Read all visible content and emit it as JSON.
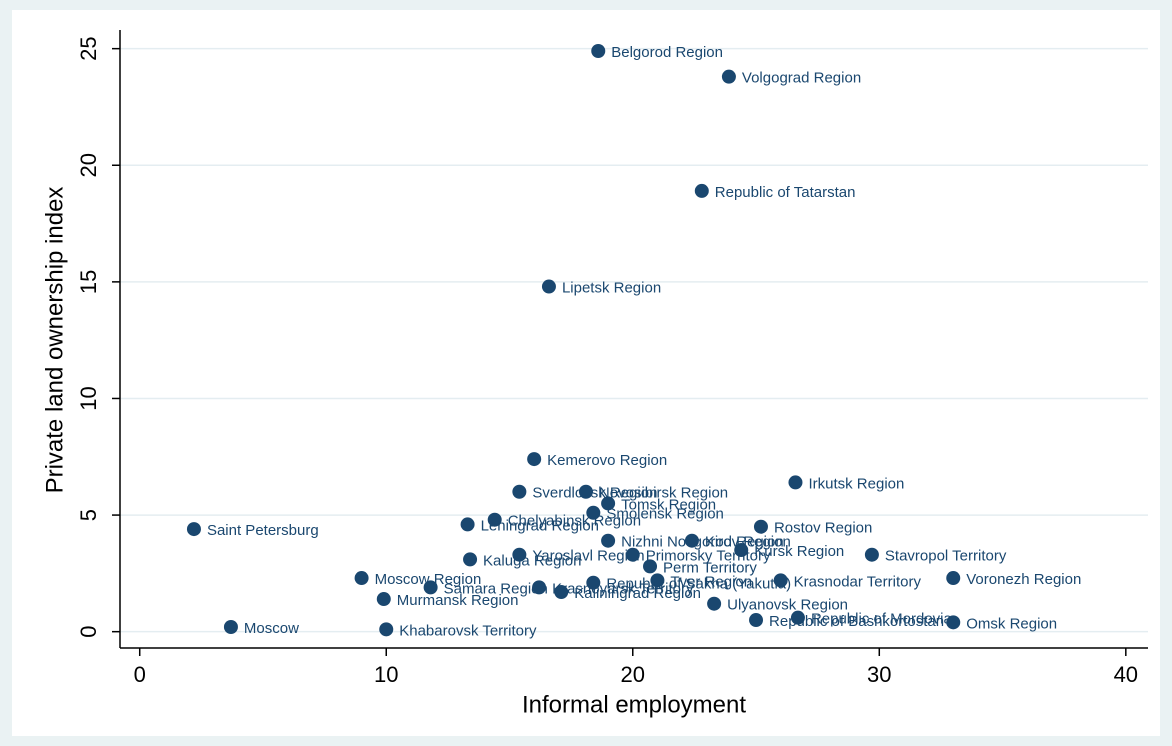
{
  "chart_data": {
    "type": "scatter",
    "xlabel": "Informal employment",
    "ylabel": "Private land ownership index",
    "color": "#1a476f",
    "grid": true,
    "xlim": [
      -0.8,
      40.9
    ],
    "ylim": [
      -0.7,
      25.8
    ],
    "xticks": [
      0,
      10,
      20,
      30,
      40
    ],
    "yticks": [
      0,
      5,
      10,
      15,
      20,
      25
    ],
    "point_labels": [
      "Belgorod Region",
      "Volgograd Region",
      "Republic of Tatarstan",
      "Lipetsk Region",
      "Kemerovo Region",
      "Irkutsk Region",
      "Sverdlovsk Region",
      "Novosibirsk Region",
      "Tomsk Region",
      "Smolensk Region",
      "Chelyabinsk Region",
      "Leningrad Region",
      "Saint Petersburg",
      "Rostov Region",
      "Nizhni Novgorod Region",
      "Kirov Region",
      "Kursk Region",
      "Yaroslavl Region",
      "Primorsky Territory",
      "Stavropol Territory",
      "Kaluga Region",
      "Perm Territory",
      "Moscow Region",
      "Voronezh Region",
      "Krasnodar Territory",
      "Tver Region",
      "Republic of Sakha (Yakutia)",
      "Samara Region",
      "Krasnoyarsk Territory",
      "Kaliningrad Region",
      "Murmansk Region",
      "Ulyanovsk Region",
      "Republic of Mordovia",
      "Republic of Bashkortostan",
      "Omsk Region",
      "Moscow",
      "Khabarovsk Territory"
    ],
    "x": [
      18.6,
      23.9,
      22.8,
      16.6,
      16.0,
      26.6,
      15.4,
      18.1,
      19.0,
      18.4,
      14.4,
      13.3,
      2.2,
      25.2,
      19.0,
      22.4,
      24.4,
      15.4,
      20.0,
      29.7,
      13.4,
      20.7,
      9.0,
      33.0,
      26.0,
      21.0,
      18.4,
      11.8,
      16.2,
      17.1,
      9.9,
      23.3,
      26.7,
      25.0,
      33.0,
      3.7,
      10.0
    ],
    "values": [
      24.9,
      23.8,
      18.9,
      14.8,
      7.4,
      6.4,
      6.0,
      6.0,
      5.5,
      5.1,
      4.8,
      4.6,
      4.4,
      4.5,
      3.9,
      3.9,
      3.5,
      3.3,
      3.3,
      3.3,
      3.1,
      2.8,
      2.3,
      2.3,
      2.2,
      2.2,
      2.1,
      1.9,
      1.9,
      1.7,
      1.4,
      1.2,
      0.6,
      0.5,
      0.4,
      0.2,
      0.1
    ]
  }
}
